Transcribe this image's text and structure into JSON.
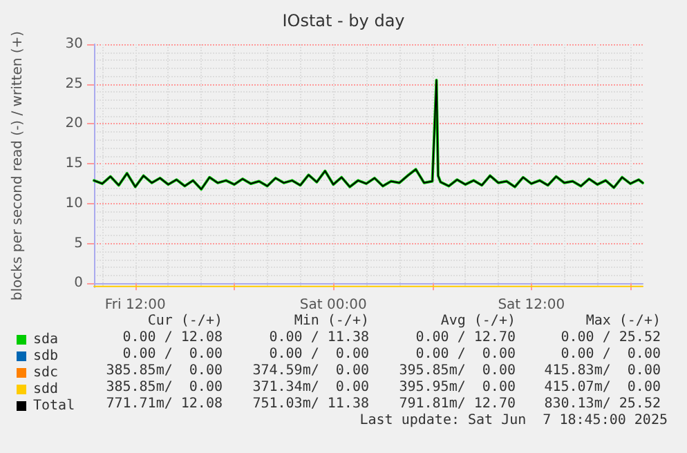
{
  "chart_data": {
    "type": "line",
    "title": "IOstat - by day",
    "ylabel": "blocks per second read (-) / written (+)",
    "x": [
      "2025-06-06T09:30",
      "2025-06-06T10:00",
      "2025-06-06T10:30",
      "2025-06-06T11:00",
      "2025-06-06T11:30",
      "2025-06-06T12:00",
      "2025-06-06T12:30",
      "2025-06-06T13:00",
      "2025-06-06T13:30",
      "2025-06-06T14:00",
      "2025-06-06T14:30",
      "2025-06-06T15:00",
      "2025-06-06T15:30",
      "2025-06-06T16:00",
      "2025-06-06T16:30",
      "2025-06-06T17:00",
      "2025-06-06T17:30",
      "2025-06-06T18:00",
      "2025-06-06T18:30",
      "2025-06-06T19:00",
      "2025-06-06T19:30",
      "2025-06-06T20:00",
      "2025-06-06T20:30",
      "2025-06-06T21:00",
      "2025-06-06T21:30",
      "2025-06-06T22:00",
      "2025-06-06T22:30",
      "2025-06-06T23:00",
      "2025-06-06T23:30",
      "2025-06-07T00:00",
      "2025-06-07T00:30",
      "2025-06-07T01:00",
      "2025-06-07T01:30",
      "2025-06-07T02:00",
      "2025-06-07T02:30",
      "2025-06-07T03:00",
      "2025-06-07T03:30",
      "2025-06-07T04:00",
      "2025-06-07T04:30",
      "2025-06-07T05:00",
      "2025-06-07T05:30",
      "2025-06-07T06:00",
      "2025-06-07T06:15",
      "2025-06-07T06:21",
      "2025-06-07T06:30",
      "2025-06-07T07:00",
      "2025-06-07T07:30",
      "2025-06-07T08:00",
      "2025-06-07T08:30",
      "2025-06-07T09:00",
      "2025-06-07T09:30",
      "2025-06-07T10:00",
      "2025-06-07T10:30",
      "2025-06-07T11:00",
      "2025-06-07T11:30",
      "2025-06-07T12:00",
      "2025-06-07T12:30",
      "2025-06-07T13:00",
      "2025-06-07T13:30",
      "2025-06-07T14:00",
      "2025-06-07T14:30",
      "2025-06-07T15:00",
      "2025-06-07T15:30",
      "2025-06-07T16:00",
      "2025-06-07T16:30",
      "2025-06-07T17:00",
      "2025-06-07T17:30",
      "2025-06-07T18:00",
      "2025-06-07T18:30",
      "2025-06-07T18:45"
    ],
    "series": [
      {
        "name": "sda",
        "color": "#00cc00",
        "values": [
          12.9,
          12.5,
          13.4,
          12.3,
          13.8,
          12.1,
          13.5,
          12.6,
          13.2,
          12.4,
          13.0,
          12.2,
          12.9,
          11.8,
          13.3,
          12.6,
          12.9,
          12.4,
          13.1,
          12.5,
          12.8,
          12.2,
          13.2,
          12.6,
          12.9,
          12.3,
          13.6,
          12.7,
          14.1,
          12.4,
          13.3,
          12.1,
          12.9,
          12.5,
          13.2,
          12.2,
          12.8,
          12.6,
          13.5,
          14.3,
          12.6,
          12.8,
          25.5,
          13.5,
          12.7,
          12.2,
          13.0,
          12.4,
          12.9,
          12.3,
          13.5,
          12.6,
          12.8,
          12.1,
          13.3,
          12.5,
          12.9,
          12.3,
          13.4,
          12.6,
          12.8,
          12.2,
          13.1,
          12.4,
          12.9,
          12.0,
          13.3,
          12.5,
          13.0,
          12.6
        ]
      },
      {
        "name": "sdb",
        "color": "#0066b3",
        "values": [
          null,
          null,
          null,
          null,
          null,
          null,
          null,
          null,
          null,
          null,
          null,
          null,
          null,
          null,
          null,
          null,
          null,
          null,
          null,
          null,
          null,
          null,
          null,
          null,
          null,
          null,
          null,
          null,
          null,
          null,
          null,
          null,
          null,
          null,
          null,
          null,
          null,
          null,
          null,
          null,
          null,
          null,
          null,
          null,
          null,
          null,
          null,
          null,
          null,
          null,
          null,
          null,
          null,
          null,
          null,
          null,
          null,
          null,
          null,
          null,
          null,
          null,
          null,
          null,
          null,
          null,
          null,
          null,
          null,
          null
        ]
      },
      {
        "name": "sdc",
        "color": "#ff8000",
        "values": [
          null,
          null,
          null,
          null,
          null,
          null,
          null,
          null,
          null,
          null,
          null,
          null,
          null,
          null,
          null,
          null,
          null,
          null,
          null,
          null,
          null,
          null,
          null,
          null,
          null,
          null,
          null,
          null,
          null,
          null,
          null,
          null,
          null,
          null,
          null,
          null,
          null,
          null,
          null,
          null,
          null,
          null,
          null,
          null,
          null,
          null,
          null,
          null,
          null,
          null,
          null,
          null,
          null,
          null,
          null,
          null,
          null,
          null,
          null,
          null,
          null,
          null,
          null,
          null,
          null,
          null,
          null,
          null,
          null,
          null
        ]
      },
      {
        "name": "sdd",
        "color": "#ffcc00",
        "values": [
          -0.4,
          -0.4,
          -0.4,
          -0.4,
          -0.4,
          -0.4,
          -0.4,
          -0.4,
          -0.4,
          -0.4,
          -0.4,
          -0.4,
          -0.4,
          -0.4,
          -0.4,
          -0.4,
          -0.4,
          -0.4,
          -0.4,
          -0.4,
          -0.4,
          -0.4,
          -0.4,
          -0.4,
          -0.4,
          -0.4,
          -0.4,
          -0.4,
          -0.4,
          -0.4,
          -0.4,
          -0.4,
          -0.4,
          -0.4,
          -0.4,
          -0.4,
          -0.4,
          -0.4,
          -0.4,
          -0.4,
          -0.4,
          -0.4,
          -0.4,
          -0.4,
          -0.4,
          -0.4,
          -0.4,
          -0.4,
          -0.4,
          -0.4,
          -0.4,
          -0.4,
          -0.4,
          -0.4,
          -0.4,
          -0.4,
          -0.4,
          -0.4,
          -0.4,
          -0.4,
          -0.4,
          -0.4,
          -0.4,
          -0.4,
          -0.4,
          -0.4,
          -0.4,
          -0.4,
          -0.4,
          -0.4
        ]
      },
      {
        "name": "Total",
        "color": "#000000",
        "values": [
          12.9,
          12.5,
          13.4,
          12.3,
          13.8,
          12.1,
          13.5,
          12.6,
          13.2,
          12.4,
          13.0,
          12.2,
          12.9,
          11.8,
          13.3,
          12.6,
          12.9,
          12.4,
          13.1,
          12.5,
          12.8,
          12.2,
          13.2,
          12.6,
          12.9,
          12.3,
          13.6,
          12.7,
          14.1,
          12.4,
          13.3,
          12.1,
          12.9,
          12.5,
          13.2,
          12.2,
          12.8,
          12.6,
          13.5,
          14.3,
          12.6,
          12.8,
          25.5,
          13.5,
          12.7,
          12.2,
          13.0,
          12.4,
          12.9,
          12.3,
          13.5,
          12.6,
          12.8,
          12.1,
          13.3,
          12.5,
          12.9,
          12.3,
          13.4,
          12.6,
          12.8,
          12.2,
          13.1,
          12.4,
          12.9,
          12.0,
          13.3,
          12.5,
          13.0,
          12.6
        ]
      }
    ],
    "xlim": [
      "2025-06-06T09:30",
      "2025-06-07T18:45"
    ],
    "xticks": [
      {
        "value": "2025-06-06T12:00",
        "label": "Fri 12:00"
      },
      {
        "value": "2025-06-06T18:00",
        "label": null
      },
      {
        "value": "2025-06-07T00:00",
        "label": "Sat 00:00"
      },
      {
        "value": "2025-06-07T06:00",
        "label": null
      },
      {
        "value": "2025-06-07T12:00",
        "label": "Sat 12:00"
      },
      {
        "value": "2025-06-07T18:00",
        "label": null
      }
    ],
    "ylim": [
      -0.5,
      30
    ],
    "yticks": [
      0,
      5,
      10,
      15,
      20,
      25,
      30
    ],
    "grid": true,
    "legend": "bottom left",
    "marker": "none",
    "line_style": "solid",
    "annotations": [
      "Cur (-/+)",
      "Min (-/+)",
      "Avg (-/+)",
      "Max (-/+)",
      "0.00 / 12.08",
      "0.00 / 11.38",
      "0.00 / 12.70",
      "0.00 / 25.52",
      "0.00 /  0.00",
      "0.00 /  0.00",
      "0.00 /  0.00",
      "0.00 /  0.00",
      "385.85m/  0.00",
      "374.59m/  0.00",
      "395.85m/  0.00",
      "415.83m/  0.00",
      "385.85m/  0.00",
      "371.34m/  0.00",
      "395.95m/  0.00",
      "415.07m/  0.00",
      "771.71m/ 12.08",
      "751.03m/ 11.38",
      "791.81m/ 12.70",
      "830.13m/ 25.52",
      "Last update: Sat Jun  7 18:45:00 2025"
    ]
  }
}
